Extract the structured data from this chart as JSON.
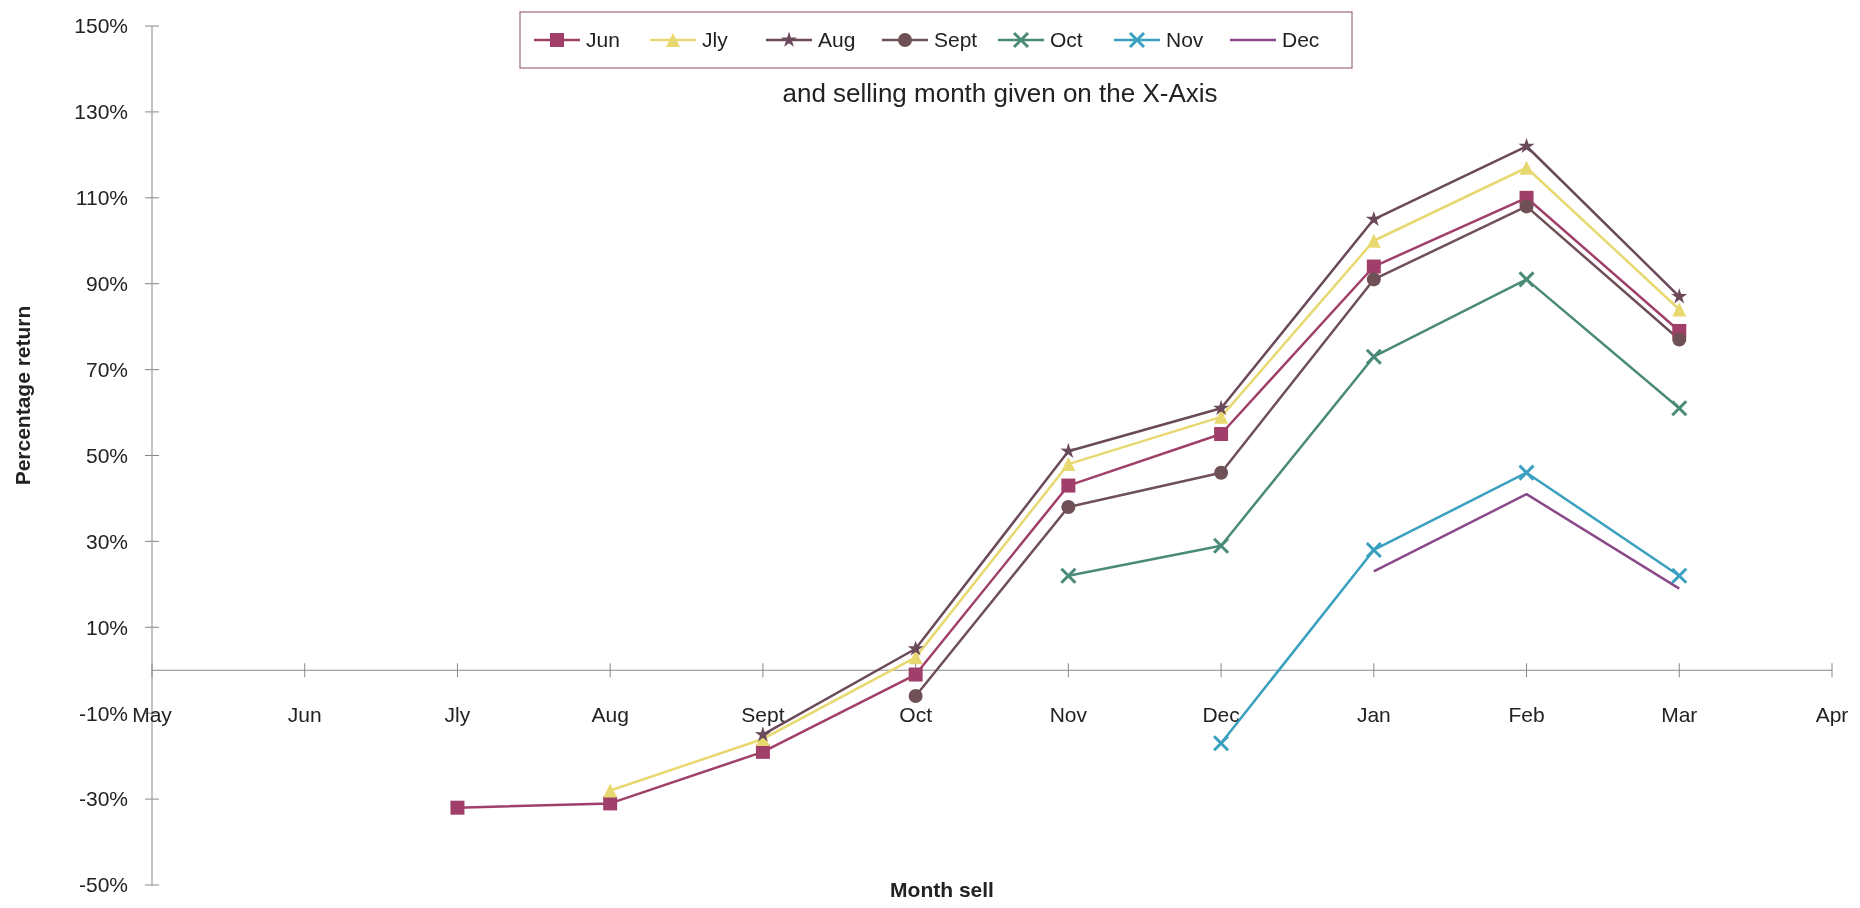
{
  "chart_data": {
    "type": "line",
    "title": "and selling month given on the X-Axis",
    "xlabel": "Month sell",
    "ylabel": "Percentage return",
    "categories": [
      "May",
      "Jun",
      "Jly",
      "Aug",
      "Sept",
      "Oct",
      "Nov",
      "Dec",
      "Jan",
      "Feb",
      "Mar",
      "Apr"
    ],
    "ylim": [
      -50,
      150
    ],
    "yticks": [
      {
        "value": -50,
        "label": "-50%"
      },
      {
        "value": -30,
        "label": "-30%"
      },
      {
        "value": -10,
        "label": "-10%"
      },
      {
        "value": 10,
        "label": "10%"
      },
      {
        "value": 30,
        "label": "30%"
      },
      {
        "value": 50,
        "label": "50%"
      },
      {
        "value": 70,
        "label": "70%"
      },
      {
        "value": 90,
        "label": "90%"
      },
      {
        "value": 110,
        "label": "110%"
      },
      {
        "value": 130,
        "label": "130%"
      },
      {
        "value": 150,
        "label": "150%"
      }
    ],
    "legend": "top",
    "grid": false,
    "series": [
      {
        "name": "Jun",
        "color": "#a0406a",
        "marker": "square",
        "values": [
          null,
          null,
          -32,
          -31,
          -19,
          -1,
          43,
          55,
          94,
          110,
          79,
          null
        ]
      },
      {
        "name": "Jly",
        "color": "#e8d870",
        "marker": "triangle",
        "values": [
          null,
          null,
          null,
          -28,
          -16,
          3,
          48,
          59,
          100,
          117,
          84,
          null
        ]
      },
      {
        "name": "Aug",
        "color": "#6a4a5a",
        "marker": "star",
        "values": [
          null,
          null,
          null,
          null,
          -15,
          5,
          51,
          61,
          105,
          122,
          87,
          null
        ]
      },
      {
        "name": "Sept",
        "color": "#6e5056",
        "marker": "circle",
        "values": [
          null,
          null,
          null,
          null,
          null,
          -6,
          38,
          46,
          91,
          108,
          77,
          null
        ]
      },
      {
        "name": "Oct",
        "color": "#4a8a78",
        "marker": "cross",
        "values": [
          null,
          null,
          null,
          null,
          null,
          null,
          22,
          29,
          73,
          91,
          61,
          null
        ]
      },
      {
        "name": "Nov",
        "color": "#3aa0c0",
        "marker": "cross",
        "values": [
          null,
          null,
          null,
          null,
          null,
          null,
          null,
          -17,
          28,
          46,
          22,
          null
        ]
      },
      {
        "name": "Dec",
        "color": "#8a4a8a",
        "marker": "none",
        "values": [
          null,
          null,
          null,
          null,
          null,
          null,
          null,
          null,
          23,
          41,
          19,
          null
        ]
      }
    ]
  }
}
